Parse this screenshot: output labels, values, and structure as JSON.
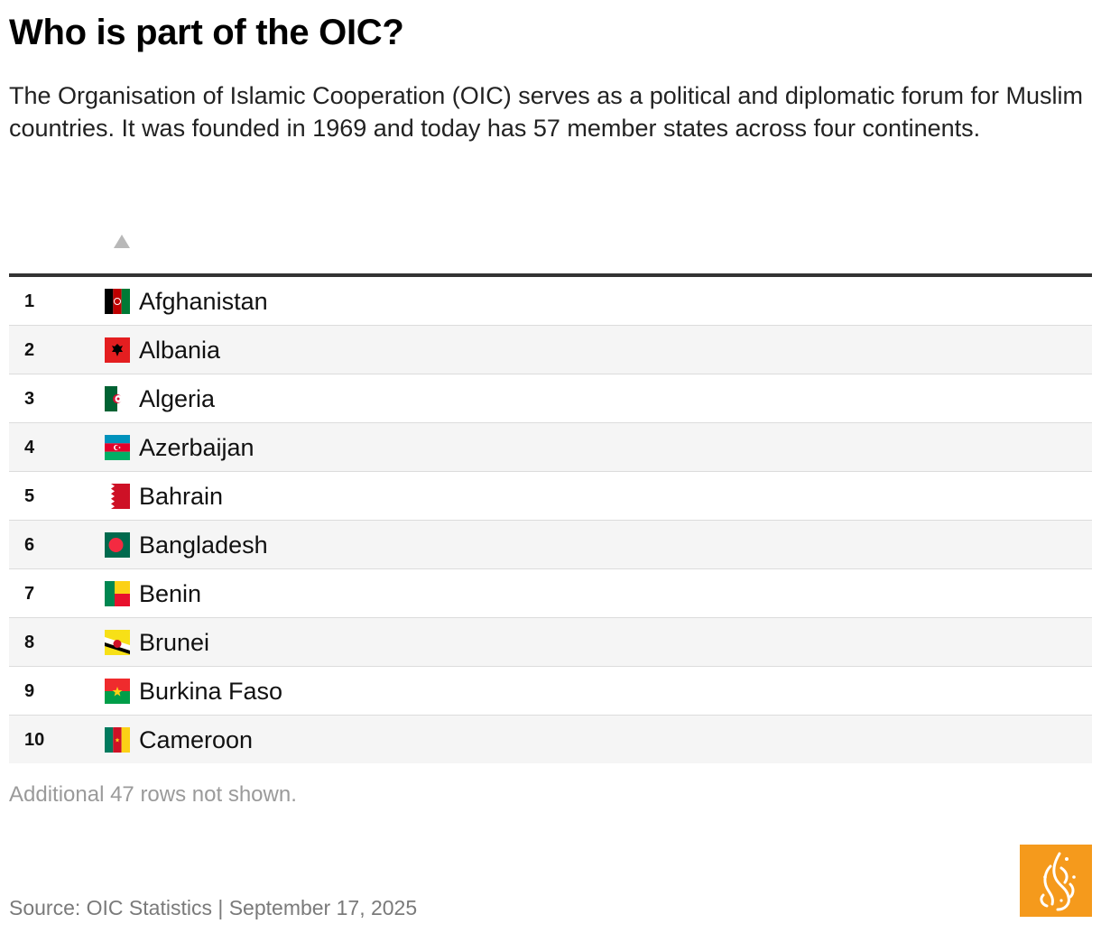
{
  "header": {
    "title": "Who is part of the OIC?",
    "intro": "The Organisation of Islamic Cooperation (OIC) serves as a political and diplomatic forum for Muslim countries. It was founded in 1969 and today has 57 member states across four continents."
  },
  "table": {
    "sort_icon": "sort-ascending-icon",
    "rows": [
      {
        "rank": "1",
        "country": "Afghanistan",
        "flag": "afghanistan-flag-icon"
      },
      {
        "rank": "2",
        "country": "Albania",
        "flag": "albania-flag-icon"
      },
      {
        "rank": "3",
        "country": "Algeria",
        "flag": "algeria-flag-icon"
      },
      {
        "rank": "4",
        "country": "Azerbaijan",
        "flag": "azerbaijan-flag-icon"
      },
      {
        "rank": "5",
        "country": "Bahrain",
        "flag": "bahrain-flag-icon"
      },
      {
        "rank": "6",
        "country": "Bangladesh",
        "flag": "bangladesh-flag-icon"
      },
      {
        "rank": "7",
        "country": "Benin",
        "flag": "benin-flag-icon"
      },
      {
        "rank": "8",
        "country": "Brunei",
        "flag": "brunei-flag-icon"
      },
      {
        "rank": "9",
        "country": "Burkina Faso",
        "flag": "burkina-faso-flag-icon"
      },
      {
        "rank": "10",
        "country": "Cameroon",
        "flag": "cameroon-flag-icon"
      }
    ],
    "more_note": "Additional 47 rows not shown."
  },
  "footer": {
    "source": "Source: OIC Statistics | September 17, 2025",
    "logo": "al-jazeera-logo-icon"
  },
  "colors": {
    "logo_background": "#f59a1c",
    "table_rule": "#333333",
    "row_stripe": "#f5f5f5"
  }
}
